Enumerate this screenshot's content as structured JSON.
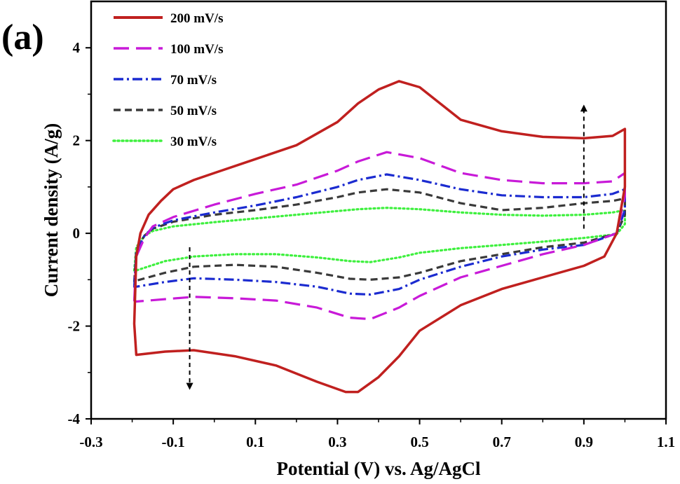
{
  "panel_label": "(a)",
  "chart_data": {
    "type": "line",
    "xlabel": "Potential (V) vs. Ag/AgCl",
    "ylabel": "Current density (A/g)",
    "xlim": [
      -0.3,
      1.1
    ],
    "ylim": [
      -4,
      5
    ],
    "xticks": [
      -0.3,
      -0.1,
      0.1,
      0.3,
      0.5,
      0.7,
      0.9,
      1.1
    ],
    "xtick_labels": [
      "-0.3",
      "-0.1",
      "0.1",
      "0.3",
      "0.5",
      "0.7",
      "0.9",
      "1.1"
    ],
    "yticks": [
      -4,
      -2,
      0,
      2,
      4
    ],
    "ytick_labels": [
      "-4",
      "-2",
      "0",
      "2",
      "4"
    ],
    "grid": false,
    "legend_position": "top-left",
    "annotations": [
      "dashed arrow upward near 0.9 V (increasing scan rate)",
      "dashed arrow downward near -0.06 V (increasing scan rate)"
    ],
    "series": [
      {
        "name": "200 mV/s",
        "color": "#c0201f",
        "style": "solid",
        "points": [
          [
            -0.195,
            -1.95
          ],
          [
            -0.19,
            -0.5
          ],
          [
            -0.18,
            0.0
          ],
          [
            -0.16,
            0.4
          ],
          [
            -0.13,
            0.7
          ],
          [
            -0.1,
            0.95
          ],
          [
            -0.05,
            1.15
          ],
          [
            0.0,
            1.3
          ],
          [
            0.1,
            1.6
          ],
          [
            0.2,
            1.9
          ],
          [
            0.3,
            2.4
          ],
          [
            0.35,
            2.8
          ],
          [
            0.4,
            3.1
          ],
          [
            0.45,
            3.28
          ],
          [
            0.5,
            3.15
          ],
          [
            0.55,
            2.8
          ],
          [
            0.6,
            2.45
          ],
          [
            0.7,
            2.2
          ],
          [
            0.8,
            2.08
          ],
          [
            0.9,
            2.05
          ],
          [
            0.97,
            2.1
          ],
          [
            1.0,
            2.25
          ],
          [
            1.0,
            1.0
          ],
          [
            0.98,
            0.0
          ],
          [
            0.95,
            -0.5
          ],
          [
            0.9,
            -0.7
          ],
          [
            0.8,
            -0.95
          ],
          [
            0.7,
            -1.2
          ],
          [
            0.6,
            -1.55
          ],
          [
            0.5,
            -2.1
          ],
          [
            0.45,
            -2.65
          ],
          [
            0.4,
            -3.1
          ],
          [
            0.35,
            -3.42
          ],
          [
            0.32,
            -3.42
          ],
          [
            0.25,
            -3.2
          ],
          [
            0.15,
            -2.85
          ],
          [
            0.05,
            -2.65
          ],
          [
            -0.05,
            -2.52
          ],
          [
            -0.12,
            -2.55
          ],
          [
            -0.19,
            -2.62
          ]
        ]
      },
      {
        "name": "100 mV/s",
        "color": "#c81ad8",
        "style": "long-dash",
        "points": [
          [
            -0.195,
            -1.45
          ],
          [
            -0.19,
            -0.5
          ],
          [
            -0.17,
            -0.1
          ],
          [
            -0.15,
            0.15
          ],
          [
            -0.1,
            0.35
          ],
          [
            0.0,
            0.62
          ],
          [
            0.1,
            0.85
          ],
          [
            0.2,
            1.05
          ],
          [
            0.3,
            1.35
          ],
          [
            0.35,
            1.55
          ],
          [
            0.42,
            1.75
          ],
          [
            0.5,
            1.62
          ],
          [
            0.6,
            1.3
          ],
          [
            0.7,
            1.15
          ],
          [
            0.8,
            1.08
          ],
          [
            0.9,
            1.08
          ],
          [
            0.97,
            1.12
          ],
          [
            1.0,
            1.3
          ],
          [
            1.0,
            0.8
          ],
          [
            0.98,
            0.0
          ],
          [
            0.9,
            -0.25
          ],
          [
            0.8,
            -0.45
          ],
          [
            0.7,
            -0.7
          ],
          [
            0.6,
            -0.95
          ],
          [
            0.5,
            -1.35
          ],
          [
            0.45,
            -1.6
          ],
          [
            0.38,
            -1.85
          ],
          [
            0.33,
            -1.82
          ],
          [
            0.25,
            -1.6
          ],
          [
            0.15,
            -1.45
          ],
          [
            0.05,
            -1.4
          ],
          [
            -0.05,
            -1.37
          ],
          [
            -0.12,
            -1.42
          ],
          [
            -0.19,
            -1.47
          ]
        ]
      },
      {
        "name": "70 mV/s",
        "color": "#1b2bd0",
        "style": "dash-dot",
        "points": [
          [
            -0.195,
            -1.15
          ],
          [
            -0.19,
            -0.4
          ],
          [
            -0.17,
            -0.05
          ],
          [
            -0.15,
            0.12
          ],
          [
            -0.1,
            0.28
          ],
          [
            0.0,
            0.45
          ],
          [
            0.1,
            0.6
          ],
          [
            0.2,
            0.78
          ],
          [
            0.3,
            1.0
          ],
          [
            0.35,
            1.15
          ],
          [
            0.42,
            1.27
          ],
          [
            0.5,
            1.15
          ],
          [
            0.6,
            0.95
          ],
          [
            0.7,
            0.82
          ],
          [
            0.8,
            0.78
          ],
          [
            0.9,
            0.78
          ],
          [
            0.97,
            0.85
          ],
          [
            1.0,
            0.95
          ],
          [
            1.0,
            0.5
          ],
          [
            0.98,
            0.0
          ],
          [
            0.9,
            -0.25
          ],
          [
            0.8,
            -0.35
          ],
          [
            0.7,
            -0.5
          ],
          [
            0.6,
            -0.72
          ],
          [
            0.5,
            -1.0
          ],
          [
            0.45,
            -1.2
          ],
          [
            0.38,
            -1.32
          ],
          [
            0.33,
            -1.3
          ],
          [
            0.25,
            -1.15
          ],
          [
            0.15,
            -1.05
          ],
          [
            0.05,
            -1.0
          ],
          [
            -0.05,
            -0.97
          ],
          [
            -0.12,
            -1.05
          ],
          [
            -0.19,
            -1.15
          ]
        ]
      },
      {
        "name": "50 mV/s",
        "color": "#3a3a3a",
        "style": "dash",
        "points": [
          [
            -0.195,
            -1.05
          ],
          [
            -0.19,
            -0.35
          ],
          [
            -0.17,
            -0.05
          ],
          [
            -0.15,
            0.1
          ],
          [
            -0.1,
            0.25
          ],
          [
            0.0,
            0.4
          ],
          [
            0.1,
            0.5
          ],
          [
            0.2,
            0.62
          ],
          [
            0.3,
            0.78
          ],
          [
            0.35,
            0.88
          ],
          [
            0.42,
            0.95
          ],
          [
            0.5,
            0.88
          ],
          [
            0.6,
            0.65
          ],
          [
            0.7,
            0.5
          ],
          [
            0.8,
            0.55
          ],
          [
            0.9,
            0.65
          ],
          [
            0.97,
            0.7
          ],
          [
            1.0,
            0.75
          ],
          [
            1.0,
            0.4
          ],
          [
            0.98,
            0.0
          ],
          [
            0.9,
            -0.2
          ],
          [
            0.8,
            -0.3
          ],
          [
            0.7,
            -0.45
          ],
          [
            0.6,
            -0.6
          ],
          [
            0.5,
            -0.85
          ],
          [
            0.45,
            -0.95
          ],
          [
            0.38,
            -1.0
          ],
          [
            0.33,
            -0.98
          ],
          [
            0.25,
            -0.85
          ],
          [
            0.15,
            -0.72
          ],
          [
            0.05,
            -0.68
          ],
          [
            -0.05,
            -0.72
          ],
          [
            -0.12,
            -0.85
          ],
          [
            -0.19,
            -1.02
          ]
        ]
      },
      {
        "name": "30 mV/s",
        "color": "#3ef03e",
        "style": "dotted",
        "points": [
          [
            -0.195,
            -0.8
          ],
          [
            -0.19,
            -0.3
          ],
          [
            -0.17,
            -0.05
          ],
          [
            -0.15,
            0.05
          ],
          [
            -0.1,
            0.15
          ],
          [
            0.0,
            0.24
          ],
          [
            0.1,
            0.32
          ],
          [
            0.2,
            0.4
          ],
          [
            0.3,
            0.48
          ],
          [
            0.35,
            0.52
          ],
          [
            0.42,
            0.55
          ],
          [
            0.5,
            0.52
          ],
          [
            0.6,
            0.45
          ],
          [
            0.7,
            0.4
          ],
          [
            0.8,
            0.38
          ],
          [
            0.9,
            0.4
          ],
          [
            0.97,
            0.45
          ],
          [
            1.0,
            0.5
          ],
          [
            1.0,
            0.2
          ],
          [
            0.98,
            -0.02
          ],
          [
            0.9,
            -0.1
          ],
          [
            0.8,
            -0.18
          ],
          [
            0.7,
            -0.25
          ],
          [
            0.6,
            -0.32
          ],
          [
            0.5,
            -0.42
          ],
          [
            0.45,
            -0.52
          ],
          [
            0.38,
            -0.62
          ],
          [
            0.33,
            -0.6
          ],
          [
            0.25,
            -0.52
          ],
          [
            0.15,
            -0.45
          ],
          [
            0.05,
            -0.45
          ],
          [
            -0.05,
            -0.5
          ],
          [
            -0.12,
            -0.6
          ],
          [
            -0.19,
            -0.8
          ]
        ]
      }
    ]
  }
}
